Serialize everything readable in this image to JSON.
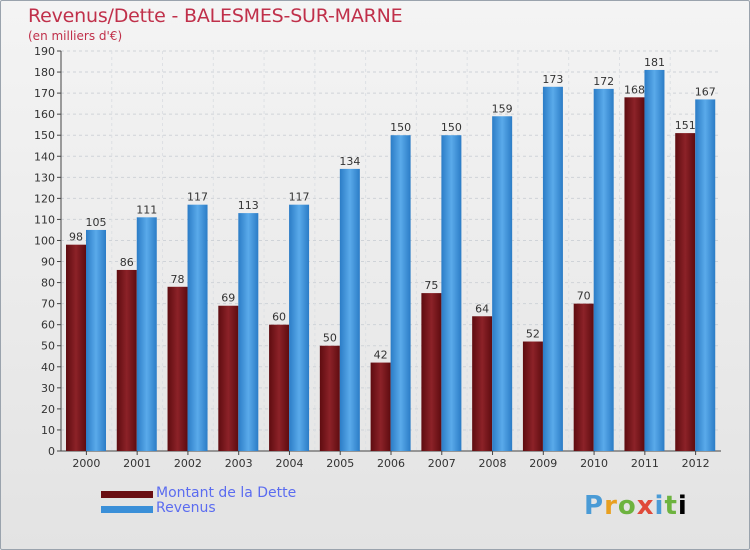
{
  "chart_data": {
    "type": "bar",
    "title": "Revenus/Dette - BALESMES-SUR-MARNE",
    "subtitle": "(en milliers d'€)",
    "categories": [
      "2000",
      "2001",
      "2002",
      "2003",
      "2004",
      "2005",
      "2006",
      "2007",
      "2008",
      "2009",
      "2010",
      "2011",
      "2012"
    ],
    "series": [
      {
        "name": "Montant de la Dette",
        "color": "#7a1418",
        "values": [
          98,
          86,
          78,
          69,
          60,
          50,
          42,
          75,
          64,
          52,
          70,
          168,
          151
        ]
      },
      {
        "name": "Revenus",
        "color": "#3a8fd8",
        "values": [
          105,
          111,
          117,
          113,
          117,
          134,
          150,
          150,
          159,
          173,
          172,
          181,
          167
        ]
      }
    ],
    "ylim": [
      0,
      190
    ],
    "yticks": [
      0,
      10,
      20,
      30,
      40,
      50,
      60,
      70,
      80,
      90,
      100,
      110,
      120,
      130,
      140,
      150,
      160,
      170,
      180,
      190
    ],
    "grid": true,
    "legend_position": "bottom-left",
    "xlabel": "",
    "ylabel": ""
  },
  "legend": {
    "debt_label": "Montant de la Dette",
    "revenue_label": "Revenus"
  },
  "logo": {
    "letters": [
      "P",
      "r",
      "o",
      "x",
      "i",
      "t",
      "i"
    ]
  }
}
